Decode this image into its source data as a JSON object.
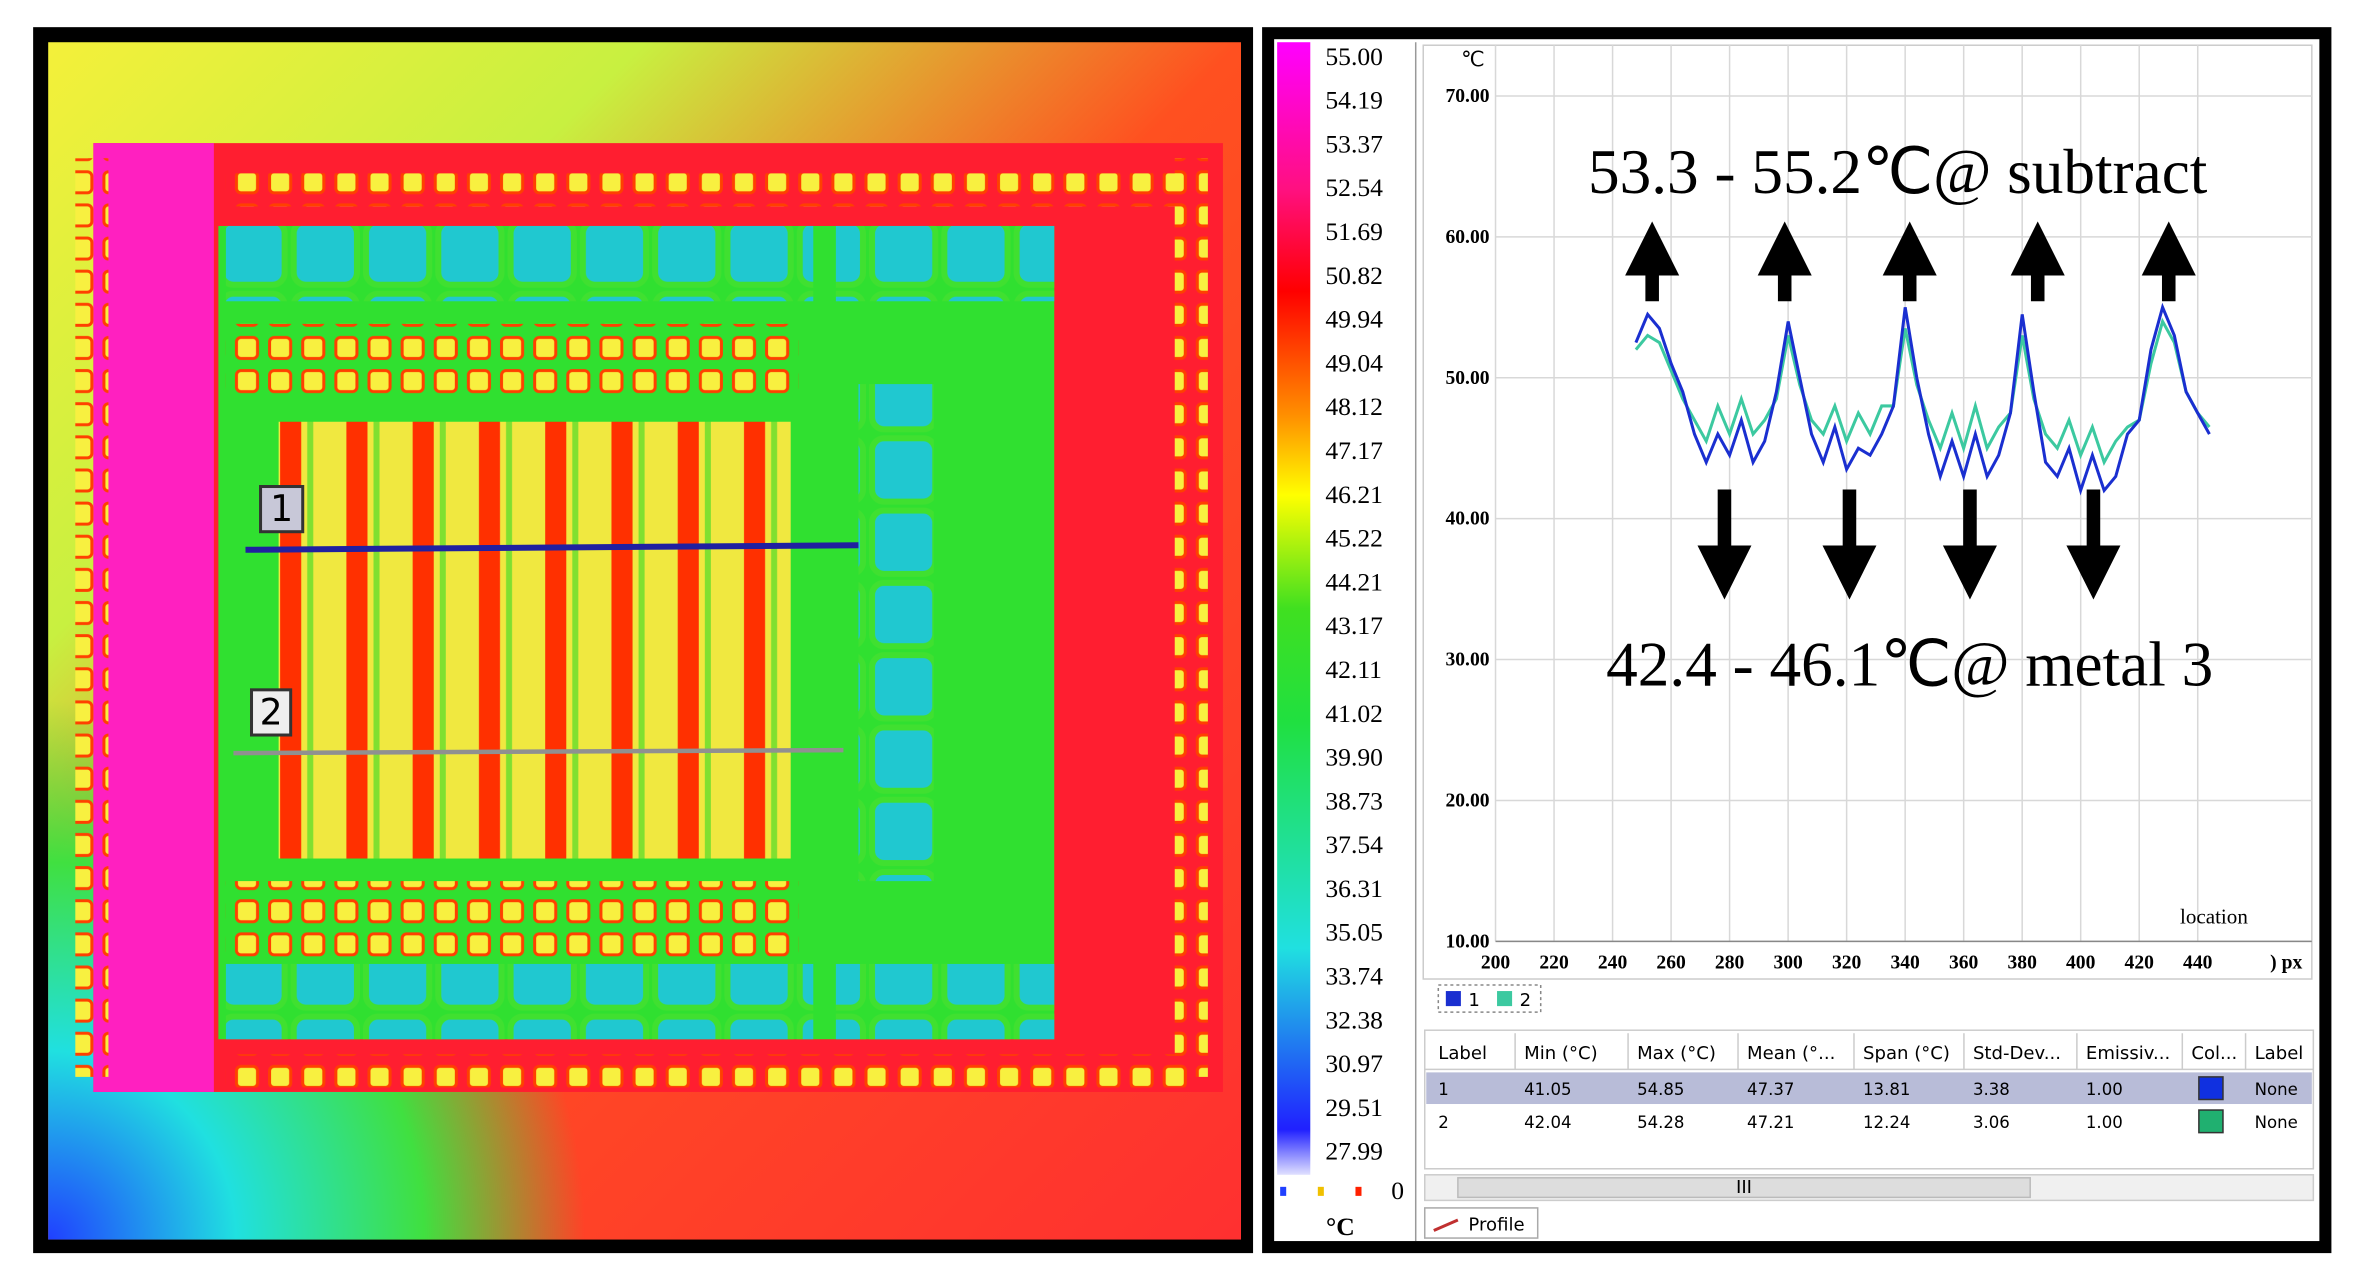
{
  "image_labels": [
    "1",
    "2"
  ],
  "colorbar": {
    "labels": [
      "55.00",
      "54.19",
      "53.37",
      "52.54",
      "51.69",
      "50.82",
      "49.94",
      "49.04",
      "48.12",
      "47.17",
      "46.21",
      "45.22",
      "44.21",
      "43.17",
      "42.11",
      "41.02",
      "39.90",
      "38.73",
      "37.54",
      "36.31",
      "35.05",
      "33.74",
      "32.38",
      "30.97",
      "29.51",
      "27.99"
    ],
    "zero": "0",
    "unit": "°C"
  },
  "chart_data": {
    "type": "line",
    "y_unit": "℃",
    "x_label": "location",
    "x_unit": ") px",
    "annotations": [
      "53.3 - 55.2℃@ subtract",
      "42.4 - 46.1℃@ metal 3"
    ],
    "xlim": [
      200,
      479
    ],
    "ylim": [
      10,
      73.6
    ],
    "xticks": [
      200,
      220,
      240,
      260,
      280,
      300,
      320,
      340,
      360,
      380,
      400,
      420,
      440
    ],
    "yticks": [
      {
        "value": 10,
        "label": "10.00"
      },
      {
        "value": 20,
        "label": "20.00"
      },
      {
        "value": 30,
        "label": "30.00"
      },
      {
        "value": 40,
        "label": "40.00"
      },
      {
        "value": 50,
        "label": "50.00"
      },
      {
        "value": 60,
        "label": "60.00"
      },
      {
        "value": 70,
        "label": "70.00"
      }
    ],
    "grid": true,
    "x": [
      248,
      252,
      256,
      260,
      264,
      268,
      272,
      276,
      280,
      284,
      288,
      292,
      296,
      300,
      304,
      308,
      312,
      316,
      320,
      324,
      328,
      332,
      336,
      340,
      344,
      348,
      352,
      356,
      360,
      364,
      368,
      372,
      376,
      380,
      384,
      388,
      392,
      396,
      400,
      404,
      408,
      412,
      416,
      420,
      424,
      428,
      432,
      436,
      440,
      444
    ],
    "series": [
      {
        "name": "1",
        "color": "#1a2fd0",
        "values": [
          52.5,
          54.5,
          53.5,
          51,
          49,
          46,
          44,
          46,
          44.5,
          47,
          44,
          45.5,
          49,
          54,
          50,
          46,
          44,
          46.5,
          43.5,
          45,
          44.5,
          46,
          48,
          55,
          50,
          46,
          43,
          45.5,
          43,
          46,
          43,
          44.5,
          47.5,
          54.5,
          49,
          44,
          43,
          45,
          42,
          44.5,
          42,
          43,
          46,
          47,
          52,
          55,
          53,
          49,
          47.5,
          46
        ]
      },
      {
        "name": "2",
        "color": "#3cc9a0",
        "values": [
          52,
          53,
          52.5,
          50.5,
          48.5,
          47,
          45.5,
          48,
          46,
          48.5,
          46,
          47,
          48.5,
          53,
          49.5,
          47,
          46,
          48,
          45.5,
          47.5,
          46,
          48,
          48,
          53.5,
          49.5,
          47,
          45,
          47.5,
          45,
          48,
          45,
          46.5,
          47.5,
          53,
          48.5,
          46,
          45,
          47,
          44.5,
          46.5,
          44,
          45.5,
          46.5,
          47,
          51,
          54,
          52.5,
          49,
          47.5,
          46.5
        ]
      }
    ]
  },
  "table": {
    "headers": [
      "Label",
      "Min (°C)",
      "Max (°C)",
      "Mean (°...",
      "Span (°C)",
      "Std-Dev...",
      "Emissiv...",
      "Col...",
      "Label"
    ],
    "rows": [
      {
        "cells": [
          "1",
          "41.05",
          "54.85",
          "47.37",
          "13.81",
          "3.38",
          "1.00"
        ],
        "color": "#1030e0",
        "label": "None"
      },
      {
        "cells": [
          "2",
          "42.04",
          "54.28",
          "47.21",
          "12.24",
          "3.06",
          "1.00"
        ],
        "color": "#20b070",
        "label": "None"
      }
    ]
  },
  "scrollbar": "III",
  "tab": "Profile"
}
